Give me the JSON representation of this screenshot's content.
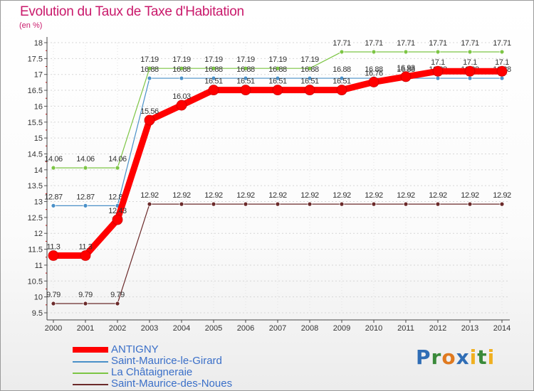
{
  "title": "Evolution du Taux de Taxe d'Habitation",
  "unit": "(en %)",
  "logo": [
    "P",
    "r",
    "o",
    "x",
    "i",
    "t",
    "i"
  ],
  "colors": {
    "ANTIGNY": "#ff0000",
    "Saint-Maurice-le-Girard": "#4a90c8",
    "La Châtaigneraie": "#7cc544",
    "Saint-Maurice-des-Noues": "#6b2a2a"
  },
  "chart_data": {
    "type": "line",
    "x": [
      2000,
      2001,
      2002,
      2003,
      2004,
      2005,
      2006,
      2007,
      2008,
      2009,
      2010,
      2011,
      2012,
      2013,
      2014
    ],
    "ylim": [
      9.5,
      18
    ],
    "yticks": [
      "9.5",
      "10",
      "10.5",
      "11",
      "11.5",
      "12",
      "12.5",
      "13",
      "13.5",
      "14",
      "14.5",
      "15",
      "15.5",
      "16",
      "16.5",
      "17",
      "17.5",
      "18"
    ],
    "legend_position": "bottom",
    "series": [
      {
        "name": "Saint-Maurice-des-Noues",
        "values": [
          9.79,
          9.79,
          9.79,
          12.92,
          12.92,
          12.92,
          12.92,
          12.92,
          12.92,
          12.92,
          12.92,
          12.92,
          12.92,
          12.92,
          12.92
        ],
        "labels": [
          "9.79",
          "9.79",
          "9.79",
          "12.92",
          "12.92",
          "12.92",
          "12.92",
          "12.92",
          "12.92",
          "12.92",
          "12.92",
          "12.92",
          "12.92",
          "12.92",
          "12.92"
        ]
      },
      {
        "name": "La Châtaigneraie",
        "values": [
          14.06,
          14.06,
          14.06,
          17.19,
          17.19,
          17.19,
          17.19,
          17.19,
          17.19,
          17.71,
          17.71,
          17.71,
          17.71,
          17.71,
          17.71
        ],
        "labels": [
          "14.06",
          "14.06",
          "14.06",
          "17.19",
          "17.19",
          "17.19",
          "17.19",
          "17.19",
          "17.19",
          "17.71",
          "17.71",
          "17.71",
          "17.71",
          "17.71",
          "17.71"
        ]
      },
      {
        "name": "Saint-Maurice-le-Girard",
        "values": [
          12.87,
          12.87,
          12.87,
          16.88,
          16.88,
          16.88,
          16.88,
          16.88,
          16.88,
          16.88,
          16.88,
          16.88,
          16.88,
          16.88,
          16.88
        ],
        "labels": [
          "12.87",
          "12.87",
          "12.87",
          "16.88",
          "16.88",
          "16.88",
          "16.88",
          "16.88",
          "16.88",
          "16.88",
          "16.88",
          "16.88",
          "16.88",
          "16.88",
          "16.88"
        ]
      },
      {
        "name": "ANTIGNY",
        "values": [
          11.3,
          11.3,
          12.43,
          15.56,
          16.03,
          16.51,
          16.51,
          16.51,
          16.51,
          16.51,
          16.76,
          16.93,
          17.1,
          17.1,
          17.1
        ],
        "labels": [
          "11.3",
          "11.3",
          "12.43",
          "15.56",
          "16.03",
          "16.51",
          "16.51",
          "16.51",
          "16.51",
          "16.51",
          "16.76",
          "16.93",
          "17.1",
          "17.1",
          "17.1"
        ]
      }
    ],
    "legend": [
      "ANTIGNY",
      "Saint-Maurice-le-Girard",
      "La Châtaigneraie",
      "Saint-Maurice-des-Noues"
    ]
  }
}
